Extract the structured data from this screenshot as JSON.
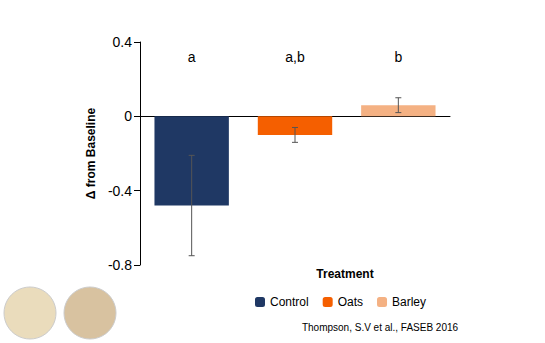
{
  "chart_data": {
    "type": "bar",
    "ylabel": "Δ from Baseline",
    "xlabel": "Treatment",
    "citation": "Thompson, S.V et al., FASEB 2016",
    "categories": [
      "Control",
      "Oats",
      "Barley"
    ],
    "values": [
      -0.48,
      -0.1,
      0.06
    ],
    "errors": [
      0.27,
      0.04,
      0.04
    ],
    "annotations": [
      "a",
      "a,b",
      "b"
    ],
    "colors": [
      "#1f3864",
      "#f55f00",
      "#f4b183"
    ],
    "ylim": [
      -0.8,
      0.4
    ],
    "yticks": [
      -0.8,
      -0.4,
      0,
      0.4
    ],
    "grid": false,
    "legend": "bottom",
    "tick_labels": "y"
  }
}
